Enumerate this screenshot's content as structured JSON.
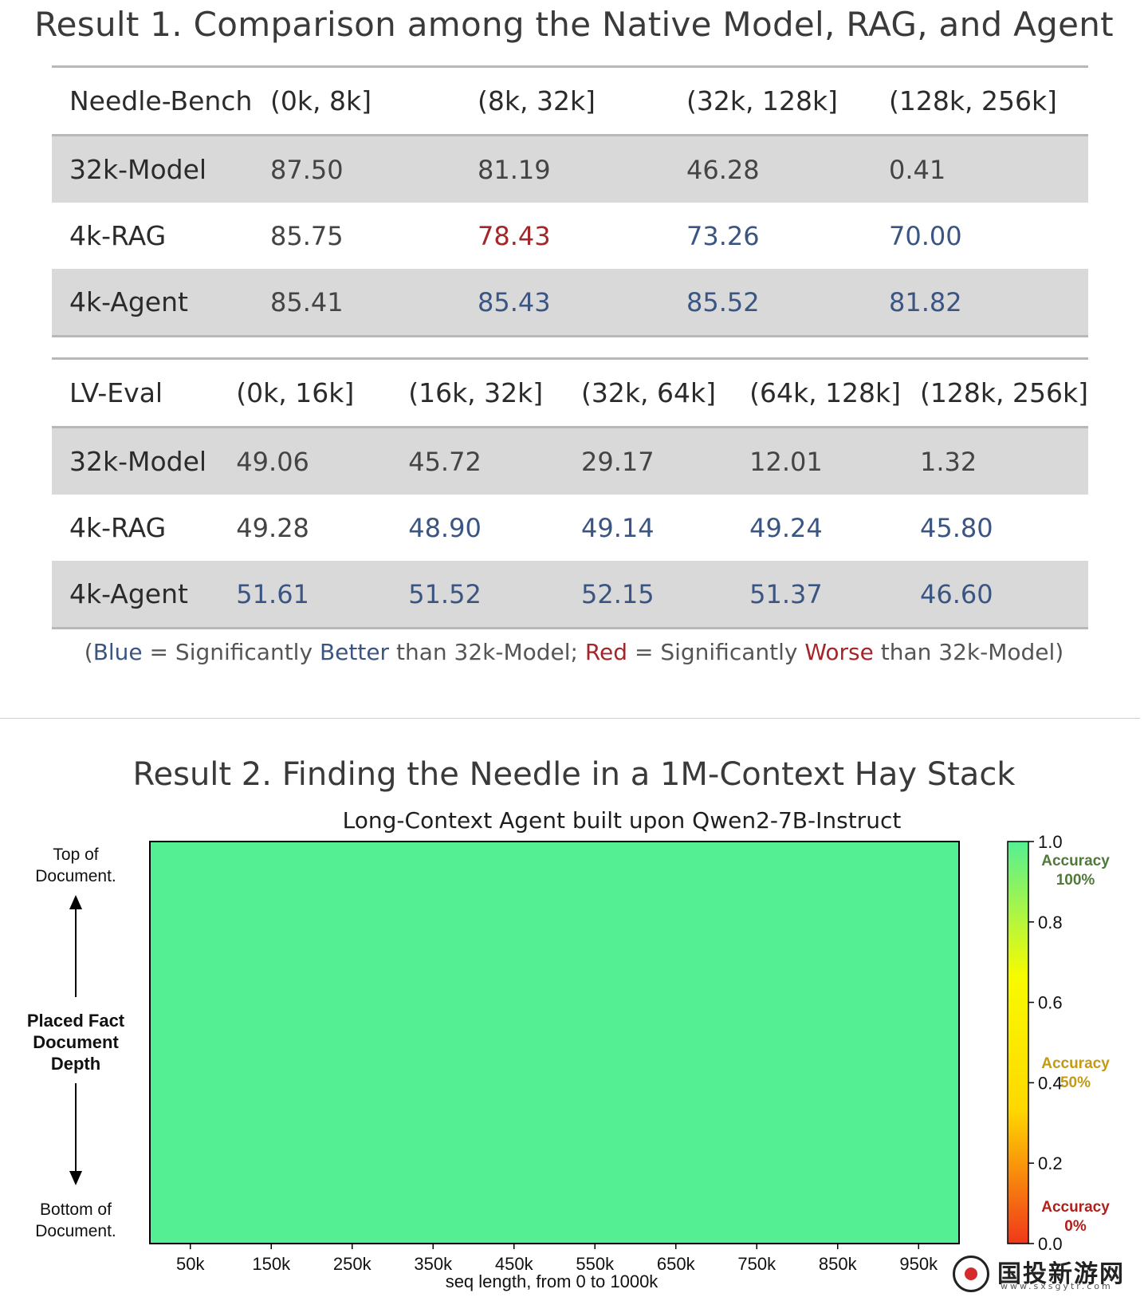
{
  "result1": {
    "title": "Result 1. Comparison among the Native Model, RAG, and Agent",
    "needle_bench": {
      "headers": [
        "Needle-Bench",
        "(0k, 8k]",
        "(8k, 32k]",
        "(32k, 128k]",
        "(128k, 256k]"
      ],
      "rows": [
        {
          "label": "32k-Model",
          "values": [
            "87.50",
            "81.19",
            "46.28",
            "0.41"
          ]
        },
        {
          "label": "4k-RAG",
          "values": [
            "85.75",
            "78.43",
            "73.26",
            "70.00"
          ]
        },
        {
          "label": "4k-Agent",
          "values": [
            "85.41",
            "85.43",
            "85.52",
            "81.82"
          ]
        }
      ]
    },
    "lv_eval": {
      "headers": [
        "LV-Eval",
        "(0k, 16k]",
        "(16k, 32k]",
        "(32k, 64k]",
        "(64k, 128k]",
        "(128k, 256k]"
      ],
      "rows": [
        {
          "label": "32k-Model",
          "values": [
            "49.06",
            "45.72",
            "29.17",
            "12.01",
            "1.32"
          ]
        },
        {
          "label": "4k-RAG",
          "values": [
            "49.28",
            "48.90",
            "49.14",
            "49.24",
            "45.80"
          ]
        },
        {
          "label": "4k-Agent",
          "values": [
            "51.61",
            "51.52",
            "52.15",
            "51.37",
            "46.60"
          ]
        }
      ]
    },
    "note": {
      "open": "(",
      "blue_word": "Blue",
      "eq1": " = Significantly ",
      "better": "Better",
      "mid": " than 32k-Model; ",
      "red_word": "Red",
      "eq2": " = Significantly ",
      "worse": "Worse",
      "end": " than 32k-Model)"
    },
    "colors": {
      "blue": "#3b5583",
      "red": "#a3262a",
      "shade": "#d9d9d9"
    }
  },
  "result2": {
    "title": "Result 2. Finding the Needle in a 1M-Context Hay Stack",
    "ylabel_top": [
      "Top of",
      "Document."
    ],
    "ylabel_mid": [
      "Placed Fact",
      "Document",
      "Depth"
    ],
    "ylabel_bottom": [
      "Bottom of",
      "Document."
    ]
  },
  "chart_data": {
    "type": "heatmap",
    "title": "Long-Context Agent built upon Qwen2-7B-Instruct",
    "xlabel": "seq length, from 0 to 1000k",
    "x_ticks": [
      "50k",
      "150k",
      "250k",
      "350k",
      "450k",
      "550k",
      "650k",
      "750k",
      "850k",
      "950k"
    ],
    "values": [
      [
        1.0,
        1.0,
        1.0,
        1.0,
        1.0,
        1.0,
        1.0,
        1.0,
        1.0,
        1.0
      ]
    ],
    "cell_color": "#55ef93",
    "colorbar": {
      "range": [
        0.0,
        1.0
      ],
      "ticks": [
        "0.0",
        "0.2",
        "0.4",
        "0.6",
        "0.8",
        "1.0"
      ],
      "colors": [
        "#f0381a",
        "#ffd800",
        "#f7fb00",
        "#55ef93"
      ],
      "annotations": [
        {
          "value": 1.0,
          "text": [
            "Accuracy",
            "100%"
          ],
          "color": "#4f7a3b"
        },
        {
          "value": 0.5,
          "text": [
            "Accuracy",
            "50%"
          ],
          "color": "#c39a12"
        },
        {
          "value": 0.0,
          "text": [
            "Accuracy",
            "0%"
          ],
          "color": "#b1201a"
        }
      ]
    }
  },
  "watermark": {
    "name": "国投新游网",
    "url": "www.sxsgytr.com"
  }
}
